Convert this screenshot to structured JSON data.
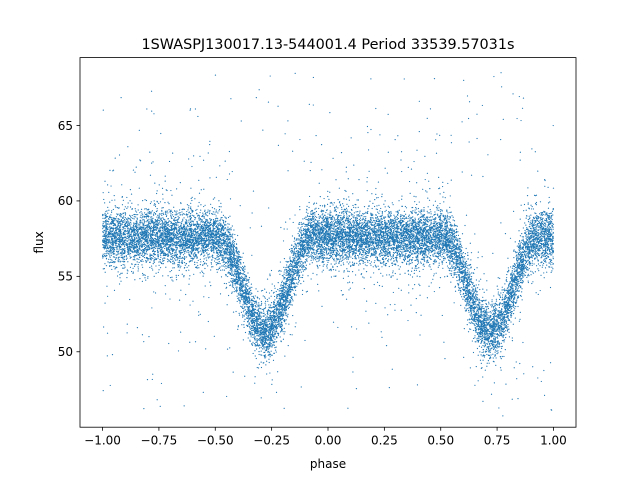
{
  "chart_data": {
    "type": "scatter",
    "title": "1SWASPJ130017.13-544001.4 Period 33539.57031s",
    "xlabel": "phase",
    "ylabel": "flux",
    "xlim": [
      -1.1,
      1.1
    ],
    "ylim": [
      45.0,
      69.5
    ],
    "xticks": [
      -1.0,
      -0.75,
      -0.5,
      -0.25,
      0.0,
      0.25,
      0.5,
      0.75,
      1.0
    ],
    "xtick_labels": [
      "−1.00",
      "−0.75",
      "−0.50",
      "−0.25",
      "0.00",
      "0.25",
      "0.50",
      "0.75",
      "1.00"
    ],
    "yticks": [
      50,
      55,
      60,
      65
    ],
    "ytick_labels": [
      "50",
      "55",
      "60",
      "65"
    ],
    "grid": false,
    "series": [
      {
        "color": "#1f77b4",
        "marker_size": 0.6,
        "point_count": 16000,
        "baseline_flux": 57.6,
        "baseline_spread": 0.9,
        "phase_range": [
          -1.0,
          1.0
        ],
        "eclipses": [
          {
            "center_phase": -0.28,
            "min_flux": 51.3,
            "half_width": 0.21
          },
          {
            "center_phase": 0.72,
            "min_flux": 51.3,
            "half_width": 0.21
          }
        ],
        "sample_points": [
          [
            -1.0,
            57.4
          ],
          [
            -0.9,
            57.8
          ],
          [
            -0.8,
            57.5
          ],
          [
            -0.7,
            57.7
          ],
          [
            -0.6,
            57.4
          ],
          [
            -0.5,
            56.2
          ],
          [
            -0.45,
            54.3
          ],
          [
            -0.4,
            52.9
          ],
          [
            -0.35,
            51.9
          ],
          [
            -0.3,
            51.4
          ],
          [
            -0.25,
            51.6
          ],
          [
            -0.2,
            52.6
          ],
          [
            -0.15,
            54.3
          ],
          [
            -0.1,
            56.3
          ],
          [
            -0.05,
            57.4
          ],
          [
            0.0,
            57.6
          ],
          [
            0.1,
            57.5
          ],
          [
            0.2,
            57.7
          ],
          [
            0.3,
            57.6
          ],
          [
            0.4,
            57.3
          ],
          [
            0.5,
            56.0
          ],
          [
            0.55,
            54.1
          ],
          [
            0.6,
            52.8
          ],
          [
            0.65,
            51.8
          ],
          [
            0.7,
            51.4
          ],
          [
            0.75,
            51.5
          ],
          [
            0.8,
            52.6
          ],
          [
            0.85,
            54.4
          ],
          [
            0.9,
            56.3
          ],
          [
            0.95,
            57.3
          ],
          [
            1.0,
            57.6
          ]
        ]
      }
    ]
  }
}
